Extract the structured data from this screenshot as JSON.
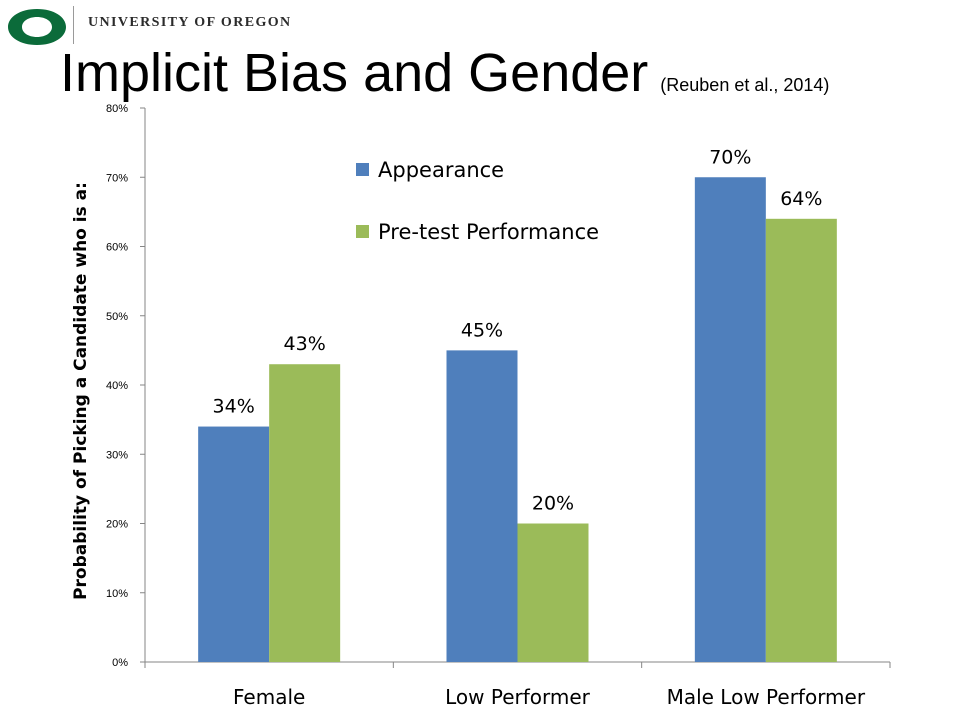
{
  "header": {
    "university": "UNIVERSITY OF OREGON",
    "title": "Implicit Bias and Gender",
    "citation": "(Reuben et al., 2014)"
  },
  "colors": {
    "brand_green": "#0b6b3a",
    "appearance": "#4f7fbc",
    "pretest": "#9bbb59"
  },
  "chart_data": {
    "type": "bar",
    "categories": [
      "Female",
      "Low Performer",
      "Male Low Performer"
    ],
    "series": [
      {
        "name": "Appearance",
        "values": [
          34,
          45,
          70
        ],
        "labels": [
          "34%",
          "45%",
          "70%"
        ],
        "color": "#4f7fbc"
      },
      {
        "name": "Pre-test Performance",
        "values": [
          43,
          20,
          64
        ],
        "labels": [
          "43%",
          "20%",
          "64%"
        ],
        "color": "#9bbb59"
      }
    ],
    "ylabel": "Probability of Picking a Candidate who is a:",
    "ylim": [
      0,
      80
    ],
    "yticks": [
      "0%",
      "10%",
      "20%",
      "30%",
      "40%",
      "50%",
      "60%",
      "70%",
      "80%"
    ],
    "grid": false,
    "legend_position": "top-center"
  }
}
